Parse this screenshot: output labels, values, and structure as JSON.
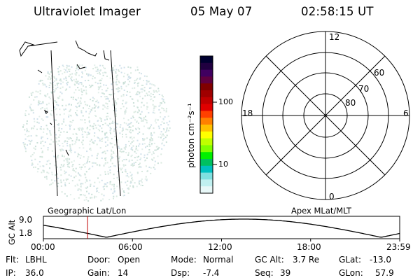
{
  "header": {
    "instrument": "Ultraviolet Imager",
    "date": "05 May 07",
    "time": "02:58:15 UT"
  },
  "colorbar": {
    "label": "photon cm⁻²s⁻¹",
    "ticks": [
      "100",
      "10"
    ],
    "colors": [
      "#000030",
      "#200040",
      "#400060",
      "#600040",
      "#800000",
      "#a00000",
      "#c00000",
      "#e00000",
      "#ff4000",
      "#ff8000",
      "#ffc000",
      "#ffff00",
      "#c0ff00",
      "#80ff00",
      "#00f000",
      "#00c060",
      "#00c0c0",
      "#80e0e0",
      "#c0f0f0",
      "#e8f8f8"
    ]
  },
  "polar_plot": {
    "mlt_labels": {
      "top": "12",
      "bottom": "0",
      "left": "18",
      "right": "6"
    },
    "lat_labels": [
      "60",
      "70",
      "80"
    ]
  },
  "timeline": {
    "left_title": "Geographic Lat/Lon",
    "right_title": "Apex MLat/MLT",
    "y_axis_label": "GC Alt",
    "y_ticks": [
      "9.0",
      "1.8"
    ],
    "x_ticks": [
      "00:00",
      "06:00",
      "12:00",
      "18:00",
      "23:59"
    ],
    "current_time_h": 2.97,
    "current_marker_color": "#c00000"
  },
  "status": {
    "flt_label": "Flt:",
    "flt_value": "LBHL",
    "ip_label": "IP:",
    "ip_value": "36.0",
    "door_label": "Door:",
    "door_value": "Open",
    "gain_label": "Gain:",
    "gain_value": "14",
    "mode_label": "Mode:",
    "mode_value": "Normal",
    "dsp_label": "Dsp:",
    "dsp_value": "-7.4",
    "gcalt_label": "GC Alt:",
    "gcalt_value": "3.7 Re",
    "seq_label": "Seq:",
    "seq_value": "39",
    "glat_label": "GLat:",
    "glat_value": "-13.0",
    "glon_label": "GLon:",
    "glon_value": "57.9"
  }
}
